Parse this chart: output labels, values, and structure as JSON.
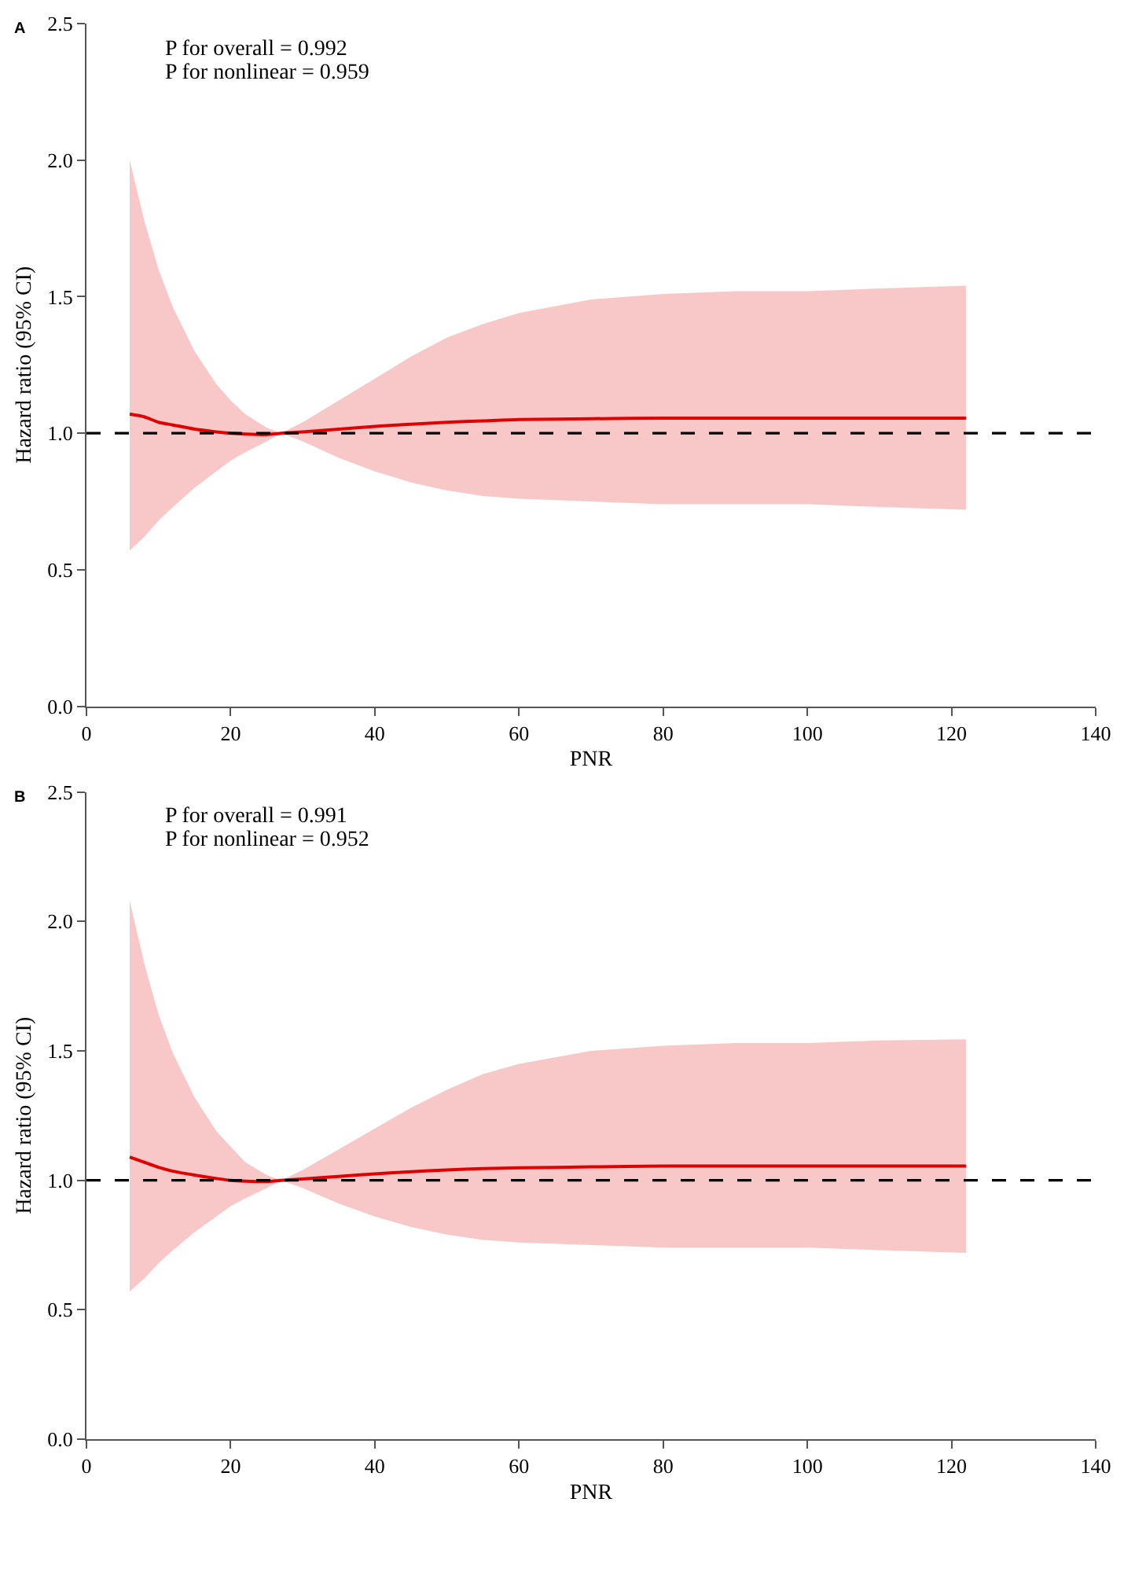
{
  "chart_data": [
    {
      "type": "line",
      "title": "A",
      "xlabel": "PNR",
      "ylabel": "Hazard ratio (95% CI)",
      "annotations": [
        "P for overall = 0.992",
        "P for nonlinear = 0.959"
      ],
      "x": [
        6,
        8,
        10,
        12,
        15,
        18,
        20,
        22,
        25,
        27,
        30,
        35,
        40,
        45,
        50,
        55,
        60,
        70,
        80,
        90,
        100,
        110,
        122
      ],
      "series": [
        {
          "color": "#e00000",
          "values": [
            1.07,
            1.06,
            1.04,
            1.03,
            1.015,
            1.005,
            1.0,
            0.997,
            0.995,
            1.0,
            1.005,
            1.015,
            1.025,
            1.033,
            1.04,
            1.045,
            1.05,
            1.053,
            1.055,
            1.055,
            1.055,
            1.055,
            1.055
          ],
          "upper": [
            2.0,
            1.78,
            1.6,
            1.46,
            1.3,
            1.18,
            1.12,
            1.07,
            1.02,
            1.0,
            1.04,
            1.12,
            1.2,
            1.28,
            1.35,
            1.4,
            1.44,
            1.49,
            1.51,
            1.52,
            1.52,
            1.53,
            1.54
          ],
          "lower": [
            0.57,
            0.62,
            0.68,
            0.73,
            0.8,
            0.86,
            0.9,
            0.93,
            0.97,
            1.0,
            0.97,
            0.91,
            0.86,
            0.82,
            0.79,
            0.77,
            0.76,
            0.75,
            0.74,
            0.74,
            0.74,
            0.73,
            0.72
          ]
        }
      ],
      "xlim": [
        0,
        140
      ],
      "xticks": [
        0,
        20,
        40,
        60,
        80,
        100,
        120,
        140
      ],
      "ylim": [
        0,
        2.5
      ],
      "yticks": [
        {
          "value": 0,
          "label": "0.0"
        },
        {
          "value": 0.5,
          "label": "0.5"
        },
        {
          "value": 1,
          "label": "1.0"
        },
        {
          "value": 1.5,
          "label": "1.5"
        },
        {
          "value": 2,
          "label": "2.0"
        },
        {
          "value": 2.5,
          "label": "2.5"
        }
      ],
      "ref_lines": [
        {
          "axis": "y",
          "value": 1,
          "color": "#000000",
          "line_style": "dashed"
        }
      ]
    },
    {
      "type": "line",
      "title": "B",
      "xlabel": "PNR",
      "ylabel": "Hazard ratio (95% CI)",
      "annotations": [
        "P for overall = 0.991",
        "P for nonlinear = 0.952"
      ],
      "x": [
        6,
        8,
        10,
        12,
        15,
        18,
        20,
        22,
        25,
        27,
        30,
        35,
        40,
        45,
        50,
        55,
        60,
        70,
        80,
        90,
        100,
        110,
        122
      ],
      "series": [
        {
          "color": "#e00000",
          "values": [
            1.09,
            1.07,
            1.05,
            1.035,
            1.02,
            1.007,
            1.0,
            0.997,
            0.995,
            1.0,
            1.005,
            1.015,
            1.025,
            1.033,
            1.04,
            1.045,
            1.048,
            1.052,
            1.055,
            1.055,
            1.055,
            1.055,
            1.055
          ],
          "upper": [
            2.08,
            1.84,
            1.64,
            1.49,
            1.32,
            1.19,
            1.13,
            1.07,
            1.02,
            1.0,
            1.04,
            1.12,
            1.2,
            1.28,
            1.35,
            1.41,
            1.45,
            1.5,
            1.52,
            1.53,
            1.53,
            1.54,
            1.545
          ],
          "lower": [
            0.57,
            0.62,
            0.68,
            0.73,
            0.8,
            0.86,
            0.9,
            0.93,
            0.97,
            1.0,
            0.97,
            0.91,
            0.86,
            0.82,
            0.79,
            0.77,
            0.76,
            0.75,
            0.74,
            0.74,
            0.74,
            0.73,
            0.72
          ]
        }
      ],
      "xlim": [
        0,
        140
      ],
      "xticks": [
        0,
        20,
        40,
        60,
        80,
        100,
        120,
        140
      ],
      "ylim": [
        0,
        2.5
      ],
      "yticks": [
        {
          "value": 0,
          "label": "0.0"
        },
        {
          "value": 0.5,
          "label": "0.5"
        },
        {
          "value": 1,
          "label": "1.0"
        },
        {
          "value": 1.5,
          "label": "1.5"
        },
        {
          "value": 2,
          "label": "2.0"
        },
        {
          "value": 2.5,
          "label": "2.5"
        }
      ],
      "ref_lines": [
        {
          "axis": "y",
          "value": 1,
          "color": "#000000",
          "line_style": "dashed"
        }
      ]
    }
  ]
}
